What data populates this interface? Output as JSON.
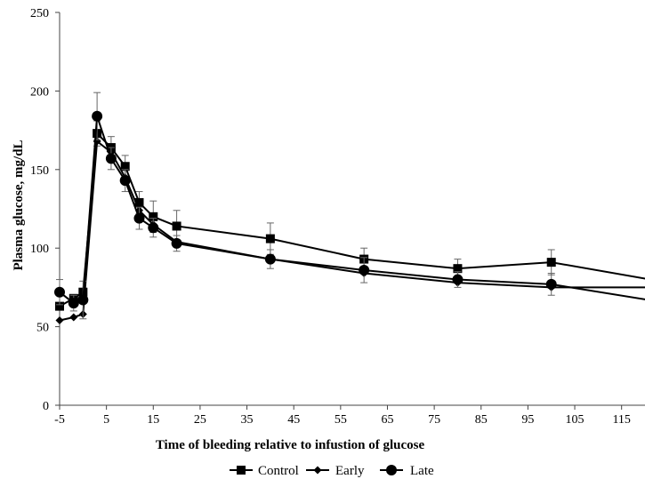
{
  "chart_data": {
    "type": "line",
    "title": "",
    "xlabel": "Time of bleeding relative to infustion of glucose",
    "ylabel": "Plasma glucose, mg/dL",
    "xlim": [
      -5,
      120
    ],
    "ylim": [
      0,
      250
    ],
    "x_ticks": [
      -5,
      5,
      15,
      25,
      35,
      45,
      55,
      65,
      75,
      85,
      95,
      105,
      115
    ],
    "y_ticks": [
      0,
      50,
      100,
      150,
      200,
      250
    ],
    "grid": false,
    "legend_position": "bottom",
    "series": [
      {
        "name": "Control",
        "marker": "square",
        "color": "#000000",
        "x": [
          -5,
          -2,
          0,
          3,
          6,
          9,
          12,
          15,
          20,
          40,
          60,
          80,
          100,
          125
        ],
        "y": [
          63,
          68,
          72,
          173,
          164,
          152,
          129,
          120,
          114,
          106,
          93,
          87,
          91,
          78
        ],
        "error": [
          0,
          0,
          0,
          8,
          7,
          7,
          7,
          10,
          10,
          10,
          7,
          6,
          8,
          0
        ]
      },
      {
        "name": "Early",
        "marker": "diamond",
        "color": "#000000",
        "x": [
          -5,
          -2,
          0,
          3,
          6,
          9,
          12,
          15,
          20,
          40,
          60,
          80,
          100,
          125
        ],
        "y": [
          54,
          56,
          58,
          168,
          161,
          145,
          124,
          115,
          104,
          93,
          84,
          78,
          75,
          75
        ],
        "error": [
          0,
          0,
          0,
          0,
          0,
          0,
          0,
          0,
          0,
          0,
          0,
          0,
          0,
          0
        ]
      },
      {
        "name": "Late",
        "marker": "circle",
        "color": "#000000",
        "x": [
          -5,
          -2,
          0,
          3,
          6,
          9,
          12,
          15,
          20,
          40,
          60,
          80,
          100,
          125
        ],
        "y": [
          72,
          65,
          67,
          184,
          157,
          143,
          119,
          113,
          103,
          93,
          86,
          80,
          77,
          65
        ],
        "error": [
          8,
          5,
          12,
          15,
          7,
          7,
          7,
          6,
          5,
          6,
          8,
          5,
          7,
          0
        ]
      }
    ]
  }
}
